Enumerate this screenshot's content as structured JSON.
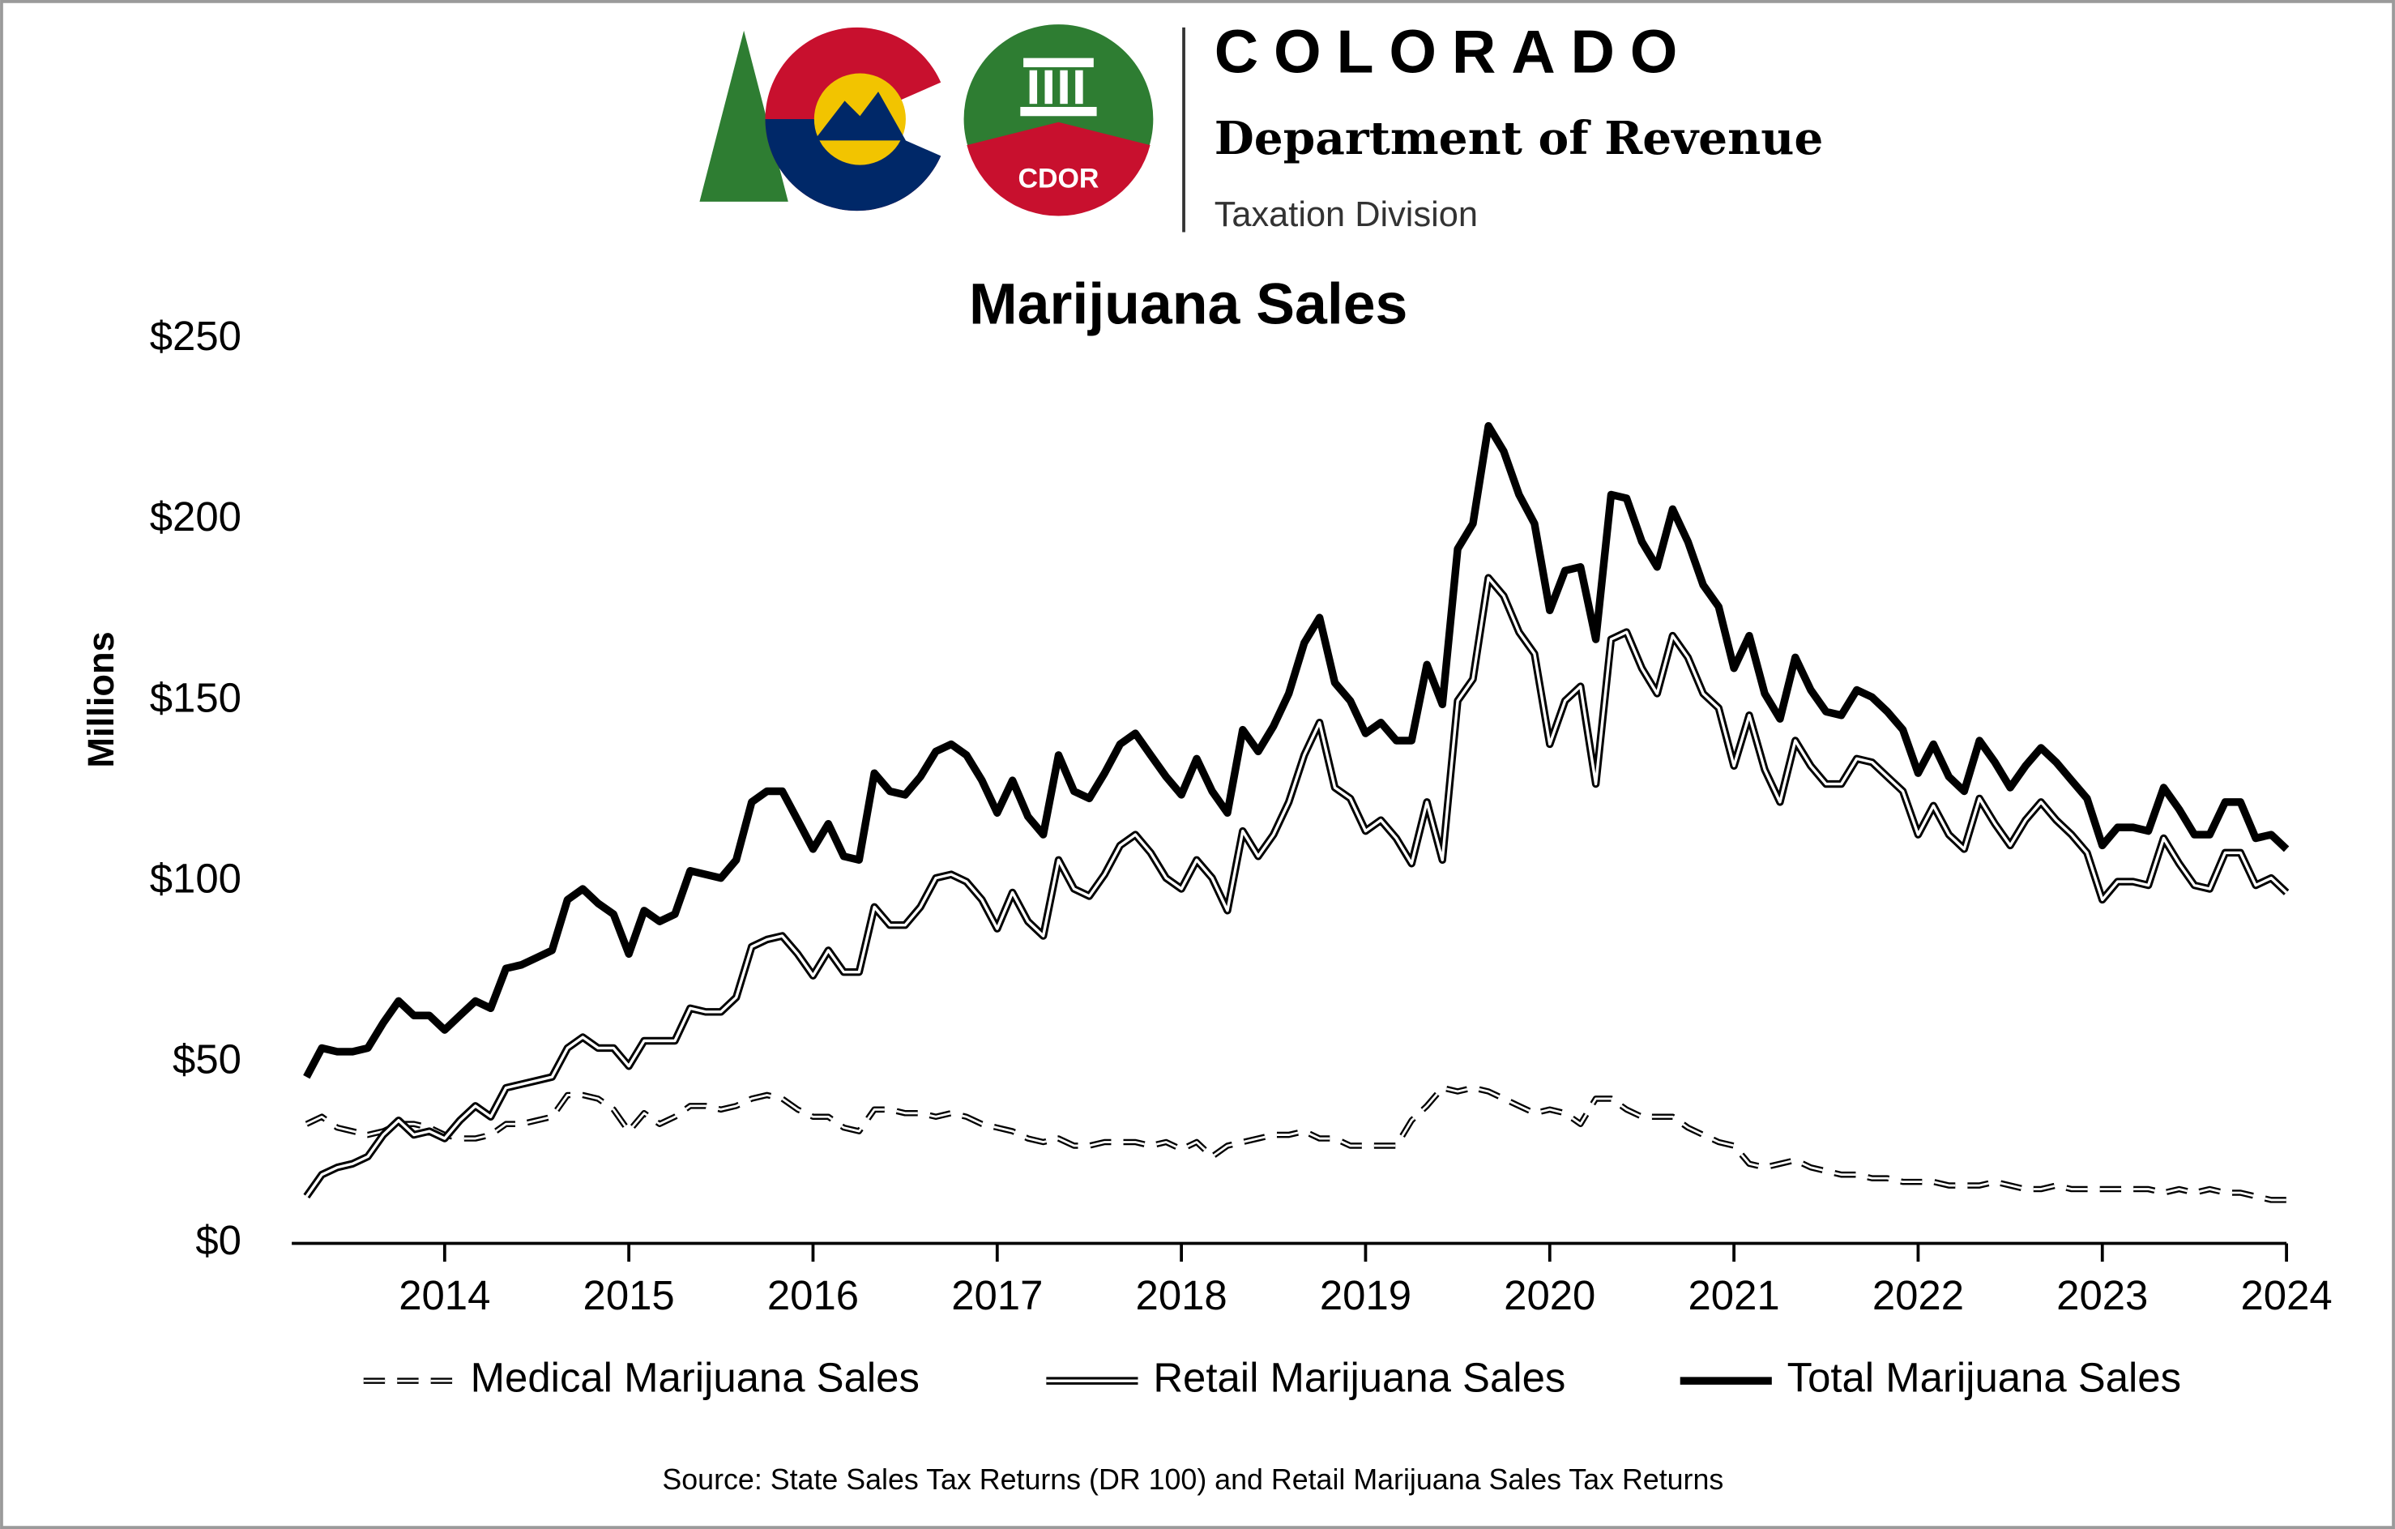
{
  "header": {
    "org": "COLORADO",
    "department": "Department of Revenue",
    "division": "Taxation Division",
    "badge": "CDOR"
  },
  "chart_data": {
    "type": "line",
    "title": "Marijuana Sales",
    "y_label": "Millions",
    "source": "Source: State Sales Tax Returns (DR 100) and Retail Marijuana Sales Tax Returns",
    "legend": "bottom",
    "grid": false,
    "xlim": [
      2013.17,
      2024
    ],
    "xticks": [
      2014,
      2015,
      2016,
      2017,
      2018,
      2019,
      2020,
      2021,
      2022,
      2023,
      2024
    ],
    "ylim": [
      0,
      250
    ],
    "yticks": [
      {
        "value": 0,
        "label": "$0"
      },
      {
        "value": 50,
        "label": "$50"
      },
      {
        "value": 100,
        "label": "$100"
      },
      {
        "value": 150,
        "label": "$150"
      },
      {
        "value": 200,
        "label": "$200"
      },
      {
        "value": 250,
        "label": "$250"
      }
    ],
    "x": [
      2013.25,
      2013.333,
      2013.417,
      2013.5,
      2013.583,
      2013.667,
      2013.75,
      2013.833,
      2013.917,
      2014,
      2014.083,
      2014.167,
      2014.25,
      2014.333,
      2014.417,
      2014.5,
      2014.583,
      2014.667,
      2014.75,
      2014.833,
      2014.917,
      2015,
      2015.083,
      2015.167,
      2015.25,
      2015.333,
      2015.417,
      2015.5,
      2015.583,
      2015.667,
      2015.75,
      2015.833,
      2015.917,
      2016,
      2016.083,
      2016.167,
      2016.25,
      2016.333,
      2016.417,
      2016.5,
      2016.583,
      2016.667,
      2016.75,
      2016.833,
      2016.917,
      2017,
      2017.083,
      2017.167,
      2017.25,
      2017.333,
      2017.417,
      2017.5,
      2017.583,
      2017.667,
      2017.75,
      2017.833,
      2017.917,
      2018,
      2018.083,
      2018.167,
      2018.25,
      2018.333,
      2018.417,
      2018.5,
      2018.583,
      2018.667,
      2018.75,
      2018.833,
      2018.917,
      2019,
      2019.083,
      2019.167,
      2019.25,
      2019.333,
      2019.417,
      2019.5,
      2019.583,
      2019.667,
      2019.75,
      2019.833,
      2019.917,
      2020,
      2020.083,
      2020.167,
      2020.25,
      2020.333,
      2020.417,
      2020.5,
      2020.583,
      2020.667,
      2020.75,
      2020.833,
      2020.917,
      2021,
      2021.083,
      2021.167,
      2021.25,
      2021.333,
      2021.417,
      2021.5,
      2021.583,
      2021.667,
      2021.75,
      2021.833,
      2021.917,
      2022,
      2022.083,
      2022.167,
      2022.25,
      2022.333,
      2022.417,
      2022.5,
      2022.583,
      2022.667,
      2022.75,
      2022.833,
      2022.917,
      2023,
      2023.083,
      2023.167,
      2023.25,
      2023.333,
      2023.417,
      2023.5,
      2023.583,
      2023.667,
      2023.75,
      2023.833,
      2023.917,
      2024
    ],
    "series": [
      {
        "name": "Medical Marijuana Sales",
        "color": "#000000",
        "style": "dashed",
        "values": [
          33,
          35,
          32,
          31,
          30,
          31,
          33,
          33,
          32,
          30,
          29,
          29,
          30,
          33,
          33,
          34,
          35,
          41,
          41,
          40,
          37,
          31,
          36,
          33,
          35,
          38,
          38,
          37,
          38,
          40,
          41,
          40,
          37,
          35,
          35,
          32,
          31,
          37,
          37,
          36,
          36,
          35,
          36,
          35,
          33,
          32,
          31,
          29,
          28,
          29,
          27,
          27,
          28,
          28,
          28,
          27,
          28,
          26,
          28,
          24,
          27,
          28,
          29,
          30,
          30,
          31,
          29,
          29,
          27,
          27,
          27,
          27,
          34,
          38,
          43,
          42,
          43,
          42,
          40,
          38,
          36,
          37,
          36,
          33,
          40,
          40,
          37,
          35,
          35,
          35,
          32,
          30,
          28,
          27,
          22,
          21,
          22,
          23,
          21,
          20,
          19,
          19,
          18,
          18,
          17,
          17,
          17,
          16,
          16,
          16,
          17,
          16,
          15,
          15,
          16,
          15,
          15,
          15,
          15,
          15,
          15,
          14,
          15,
          14,
          15,
          14,
          14,
          13,
          12,
          12
        ]
      },
      {
        "name": "Retail Marijuana Sales",
        "color": "#000000",
        "style": "double",
        "values": [
          13,
          19,
          21,
          22,
          24,
          30,
          34,
          30,
          31,
          29,
          34,
          38,
          35,
          43,
          44,
          45,
          46,
          54,
          57,
          54,
          54,
          49,
          56,
          56,
          56,
          65,
          64,
          64,
          68,
          82,
          84,
          85,
          80,
          74,
          81,
          75,
          75,
          93,
          88,
          88,
          93,
          101,
          102,
          100,
          95,
          87,
          97,
          89,
          85,
          106,
          98,
          96,
          102,
          110,
          113,
          108,
          101,
          98,
          106,
          101,
          92,
          114,
          107,
          113,
          122,
          135,
          144,
          126,
          123,
          114,
          117,
          112,
          105,
          122,
          106,
          150,
          156,
          184,
          179,
          169,
          163,
          138,
          150,
          154,
          127,
          167,
          169,
          159,
          152,
          168,
          162,
          152,
          148,
          132,
          146,
          131,
          122,
          139,
          132,
          127,
          127,
          134,
          133,
          129,
          125,
          113,
          121,
          113,
          109,
          123,
          116,
          110,
          117,
          122,
          117,
          113,
          108,
          95,
          100,
          100,
          99,
          112,
          105,
          99,
          98,
          108,
          108,
          99,
          101,
          97
        ]
      },
      {
        "name": "Total Marijuana Sales",
        "color": "#000000",
        "style": "solid",
        "values": [
          46,
          54,
          53,
          53,
          54,
          61,
          67,
          63,
          63,
          59,
          63,
          67,
          65,
          76,
          77,
          79,
          81,
          95,
          98,
          94,
          91,
          80,
          92,
          89,
          91,
          103,
          102,
          101,
          106,
          122,
          125,
          125,
          117,
          109,
          116,
          107,
          106,
          130,
          125,
          124,
          129,
          136,
          138,
          135,
          128,
          119,
          128,
          118,
          113,
          135,
          125,
          123,
          130,
          138,
          141,
          135,
          129,
          124,
          134,
          125,
          119,
          142,
          136,
          143,
          152,
          166,
          173,
          155,
          150,
          141,
          144,
          139,
          139,
          160,
          149,
          192,
          199,
          226,
          219,
          207,
          199,
          175,
          186,
          187,
          167,
          207,
          206,
          194,
          187,
          203,
          194,
          182,
          176,
          159,
          168,
          152,
          145,
          162,
          153,
          147,
          146,
          153,
          151,
          147,
          142,
          130,
          138,
          129,
          125,
          139,
          133,
          126,
          132,
          137,
          133,
          128,
          123,
          110,
          115,
          115,
          114,
          126,
          120,
          113,
          113,
          122,
          122,
          112,
          113,
          109
        ]
      }
    ]
  }
}
